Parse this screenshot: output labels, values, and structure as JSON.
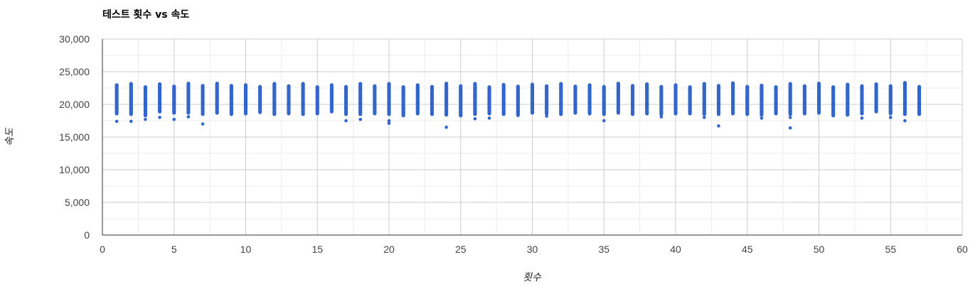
{
  "chart_data": {
    "type": "scatter",
    "title": "테스트 횟수 vs 속도",
    "xlabel": "횟수",
    "ylabel": "속도",
    "xlim": [
      0,
      60
    ],
    "ylim": [
      0,
      30000
    ],
    "x_ticks": [
      0,
      5,
      10,
      15,
      20,
      25,
      30,
      35,
      40,
      45,
      50,
      55,
      60
    ],
    "y_ticks": [
      0,
      5000,
      10000,
      15000,
      20000,
      25000,
      30000
    ],
    "x_tick_labels": [
      "0",
      "5",
      "10",
      "15",
      "20",
      "25",
      "30",
      "35",
      "40",
      "45",
      "50",
      "55",
      "60"
    ],
    "y_tick_labels": [
      "0",
      "5,000",
      "10,000",
      "15,000",
      "20,000",
      "25,000",
      "30,000"
    ],
    "grid": true,
    "legend": "none",
    "marker_color": "#3366cc",
    "series": [
      {
        "x": [
          1,
          2,
          3,
          4,
          5,
          6,
          7,
          8,
          9,
          10,
          11,
          12,
          13,
          14,
          15,
          16,
          17,
          18,
          19,
          20,
          21,
          22,
          23,
          24,
          25,
          26,
          27,
          28,
          29,
          30,
          31,
          32,
          33,
          34,
          35,
          36,
          37,
          38,
          39,
          40,
          41,
          42,
          43,
          44,
          45,
          46,
          47,
          48,
          49,
          50,
          51,
          52,
          53,
          54,
          55,
          56,
          57
        ],
        "y_min": [
          18600,
          18500,
          18300,
          18900,
          18700,
          18700,
          18500,
          18700,
          18500,
          18600,
          18800,
          18500,
          18600,
          18500,
          18600,
          18900,
          18500,
          18500,
          18600,
          18500,
          18300,
          18600,
          18500,
          18400,
          18300,
          18500,
          18600,
          18500,
          18400,
          18700,
          18600,
          18500,
          18700,
          18600,
          18500,
          18700,
          18500,
          18600,
          18500,
          18600,
          18600,
          18500,
          18500,
          18600,
          18500,
          18400,
          18600,
          18500,
          18600,
          18700,
          18300,
          18400,
          18600,
          18900,
          18600,
          18500,
          18500
        ],
        "y_max": [
          23000,
          23200,
          22700,
          23100,
          22800,
          23200,
          22900,
          23300,
          22900,
          23000,
          22800,
          23200,
          22900,
          23200,
          22700,
          23000,
          22700,
          23200,
          22900,
          23200,
          22700,
          23000,
          22700,
          23200,
          22900,
          23200,
          22700,
          23000,
          22800,
          23100,
          22900,
          23200,
          22800,
          23000,
          22800,
          23200,
          22900,
          23200,
          22700,
          23000,
          22700,
          23200,
          22900,
          23300,
          22700,
          23000,
          22700,
          23200,
          22900,
          23200,
          22700,
          23100,
          22800,
          23200,
          22900,
          23300,
          22800
        ],
        "outliers": [
          [
            1,
            17400
          ],
          [
            2,
            17400
          ],
          [
            3,
            17700
          ],
          [
            4,
            18000
          ],
          [
            5,
            17700
          ],
          [
            6,
            18100
          ],
          [
            7,
            17000
          ],
          [
            17,
            17500
          ],
          [
            18,
            17700
          ],
          [
            20,
            17100
          ],
          [
            20,
            17500
          ],
          [
            24,
            16500
          ],
          [
            26,
            17800
          ],
          [
            27,
            17900
          ],
          [
            29,
            18300
          ],
          [
            31,
            18200
          ],
          [
            35,
            17500
          ],
          [
            39,
            18100
          ],
          [
            42,
            18000
          ],
          [
            43,
            16700
          ],
          [
            46,
            17900
          ],
          [
            48,
            16400
          ],
          [
            48,
            18000
          ],
          [
            53,
            17900
          ],
          [
            55,
            18000
          ],
          [
            56,
            17500
          ]
        ]
      }
    ]
  }
}
